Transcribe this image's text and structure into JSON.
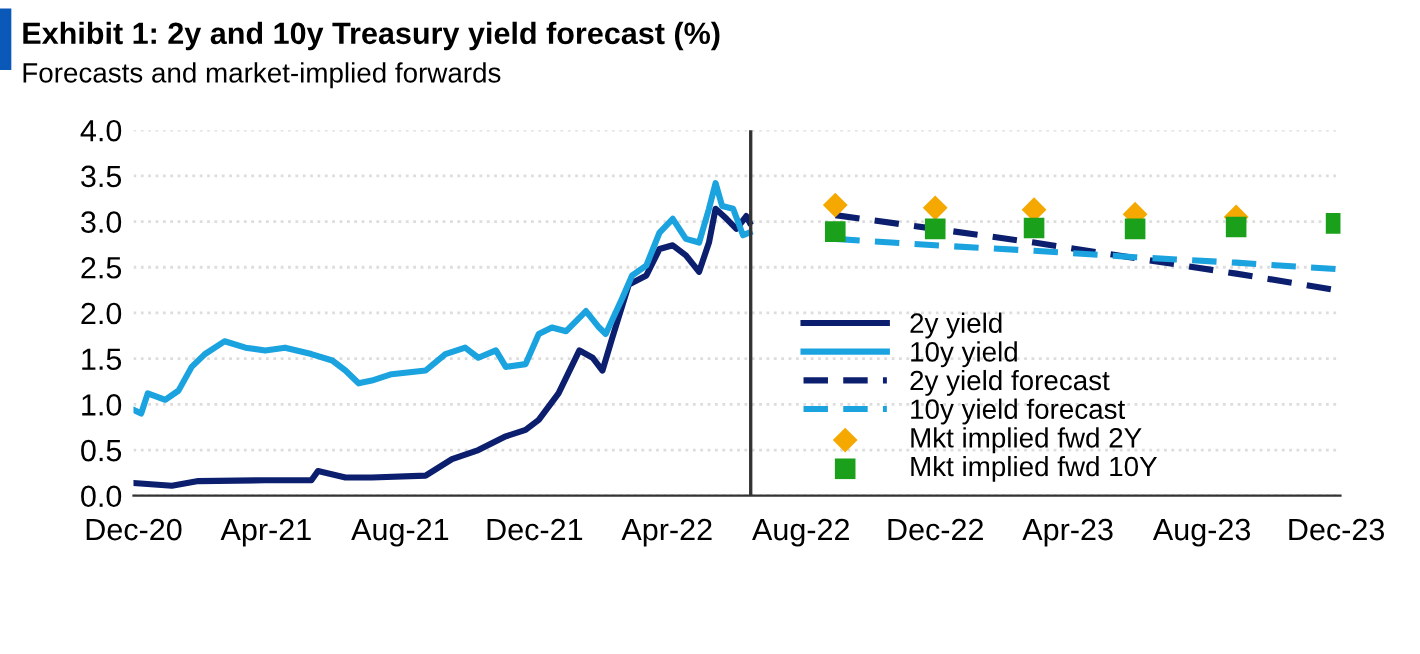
{
  "chart_data": {
    "type": "line",
    "title": "Exhibit 1: 2y and 10y Treasury yield forecast (%)",
    "subtitle": "Forecasts and market-implied forwards",
    "series": [
      {
        "name": "2y yield",
        "color": "#0c1f6e",
        "line_style": "solid",
        "x": [
          "2020-12-01",
          "2021-01-05",
          "2021-01-29",
          "2021-03-31",
          "2021-05-12",
          "2021-05-18",
          "2021-06-12",
          "2021-07-06",
          "2021-08-24",
          "2021-09-17",
          "2021-10-11",
          "2021-11-05",
          "2021-11-23",
          "2021-12-05",
          "2021-12-23",
          "2022-01-11",
          "2022-01-23",
          "2022-02-01",
          "2022-02-10",
          "2022-02-25",
          "2022-03-13",
          "2022-03-25",
          "2022-04-06",
          "2022-04-18",
          "2022-04-30",
          "2022-05-09",
          "2022-05-15",
          "2022-05-25",
          "2022-06-03",
          "2022-06-12",
          "2022-06-15"
        ],
        "values": [
          0.14,
          0.11,
          0.16,
          0.17,
          0.17,
          0.27,
          0.2,
          0.2,
          0.22,
          0.4,
          0.5,
          0.65,
          0.72,
          0.83,
          1.12,
          1.59,
          1.51,
          1.37,
          1.73,
          2.31,
          2.41,
          2.7,
          2.74,
          2.63,
          2.45,
          2.77,
          3.14,
          3.03,
          2.92,
          3.06,
          2.99
        ]
      },
      {
        "name": "10y yield",
        "color": "#1ba3e0",
        "line_style": "solid",
        "x": [
          "2020-12-01",
          "2020-12-08",
          "2020-12-14",
          "2020-12-30",
          "2021-01-11",
          "2021-01-23",
          "2021-02-04",
          "2021-02-22",
          "2021-03-13",
          "2021-03-31",
          "2021-04-18",
          "2021-05-12",
          "2021-05-31",
          "2021-06-12",
          "2021-06-24",
          "2021-07-06",
          "2021-07-24",
          "2021-08-24",
          "2021-09-11",
          "2021-09-29",
          "2021-10-11",
          "2021-10-27",
          "2021-11-05",
          "2021-11-23",
          "2021-12-05",
          "2021-12-17",
          "2021-12-30",
          "2022-01-17",
          "2022-01-29",
          "2022-02-04",
          "2022-02-19",
          "2022-02-28",
          "2022-03-13",
          "2022-03-25",
          "2022-04-06",
          "2022-04-18",
          "2022-04-30",
          "2022-05-09",
          "2022-05-15",
          "2022-05-21",
          "2022-05-31",
          "2022-06-09",
          "2022-06-15"
        ],
        "values": [
          0.94,
          0.9,
          1.12,
          1.05,
          1.15,
          1.41,
          1.55,
          1.69,
          1.62,
          1.59,
          1.62,
          1.55,
          1.48,
          1.37,
          1.23,
          1.26,
          1.33,
          1.37,
          1.55,
          1.62,
          1.51,
          1.59,
          1.41,
          1.44,
          1.77,
          1.84,
          1.8,
          2.02,
          1.84,
          1.77,
          2.16,
          2.41,
          2.52,
          2.88,
          3.03,
          2.81,
          2.77,
          3.14,
          3.42,
          3.17,
          3.14,
          2.85,
          2.88
        ]
      },
      {
        "name": "2y yield forecast",
        "color": "#0c1f6e",
        "line_style": "dashed",
        "x": [
          "2022-09-01",
          "2022-12-01",
          "2023-03-01",
          "2023-06-01",
          "2023-09-01",
          "2023-12-01"
        ],
        "values": [
          3.07,
          2.92,
          2.77,
          2.6,
          2.43,
          2.25
        ]
      },
      {
        "name": "10y yield forecast",
        "color": "#1ba3e0",
        "line_style": "dashed",
        "x": [
          "2022-09-01",
          "2022-12-01",
          "2023-03-01",
          "2023-06-01",
          "2023-09-01",
          "2023-12-01"
        ],
        "values": [
          2.81,
          2.74,
          2.68,
          2.61,
          2.55,
          2.48
        ]
      },
      {
        "name": "Mkt implied fwd 2Y",
        "type": "scatter",
        "marker": "diamond",
        "color": "#f5a800",
        "x": [
          "2022-09-01",
          "2022-12-01",
          "2023-03-01",
          "2023-06-01",
          "2023-09-01"
        ],
        "values": [
          3.18,
          3.15,
          3.13,
          3.08,
          3.05
        ]
      },
      {
        "name": "Mkt implied fwd 10Y",
        "type": "scatter",
        "marker": "square",
        "color": "#1aa01a",
        "x": [
          "2022-09-01",
          "2022-12-01",
          "2023-03-01",
          "2023-06-01",
          "2023-09-01",
          "2023-12-01"
        ],
        "values": [
          2.89,
          2.92,
          2.93,
          2.92,
          2.94,
          2.98
        ]
      }
    ],
    "xlim": [
      "2020-12-01",
      "2023-12-05"
    ],
    "xticks": [
      {
        "value": "2020-12-01",
        "label": "Dec-20"
      },
      {
        "value": "2021-04-01",
        "label": "Apr-21"
      },
      {
        "value": "2021-08-01",
        "label": "Aug-21"
      },
      {
        "value": "2021-12-01",
        "label": "Dec-21"
      },
      {
        "value": "2022-04-01",
        "label": "Apr-22"
      },
      {
        "value": "2022-08-01",
        "label": "Aug-22"
      },
      {
        "value": "2022-12-01",
        "label": "Dec-22"
      },
      {
        "value": "2023-04-01",
        "label": "Apr-23"
      },
      {
        "value": "2023-08-01",
        "label": "Aug-23"
      },
      {
        "value": "2023-12-01",
        "label": "Dec-23"
      }
    ],
    "ylim": [
      0,
      4
    ],
    "yticks": [
      {
        "value": 0,
        "label": "0.0"
      },
      {
        "value": 0.5,
        "label": "0.5"
      },
      {
        "value": 1,
        "label": "1.0"
      },
      {
        "value": 1.5,
        "label": "1.5"
      },
      {
        "value": 2,
        "label": "2.0"
      },
      {
        "value": 2.5,
        "label": "2.5"
      },
      {
        "value": 3,
        "label": "3.0"
      },
      {
        "value": 3.5,
        "label": "3.5"
      },
      {
        "value": 4,
        "label": "4.0"
      }
    ],
    "ref_lines": [
      {
        "axis": "x",
        "value": "2022-06-16",
        "color": "#333333",
        "line_style": "solid"
      }
    ],
    "grid": "y",
    "legend": "bottom right"
  }
}
